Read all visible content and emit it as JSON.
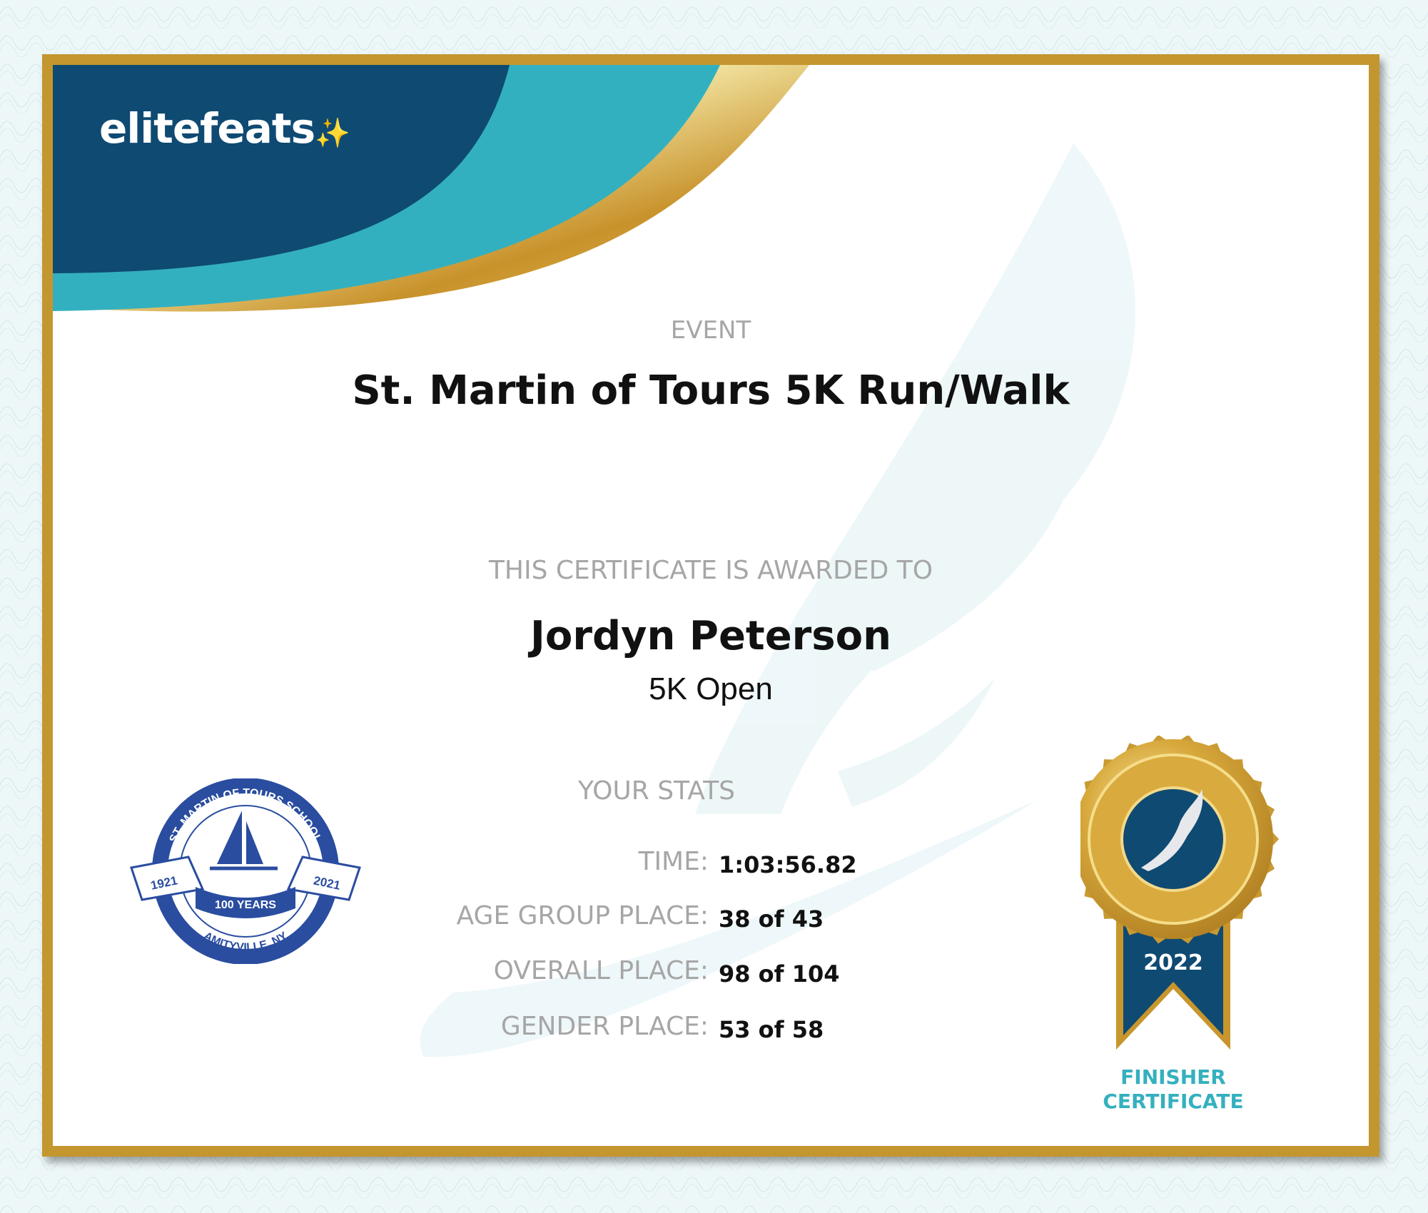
{
  "brand": {
    "logo_text": "elitefeats",
    "colors": {
      "navy": "#0f4a72",
      "teal": "#33b0bf",
      "gold": "#c3962f"
    }
  },
  "event": {
    "label": "EVENT",
    "title": "St. Martin of Tours 5K Run/Walk"
  },
  "award": {
    "label": "THIS CERTIFICATE IS AWARDED TO",
    "name": "Jordyn Peterson",
    "division": "5K Open"
  },
  "stats": {
    "title": "YOUR STATS",
    "rows": [
      {
        "label": "TIME:",
        "value": "1:03:56.82"
      },
      {
        "label": "AGE GROUP PLACE:",
        "value": "38 of 43"
      },
      {
        "label": "OVERALL PLACE:",
        "value": "98 of 104"
      },
      {
        "label": "GENDER PLACE:",
        "value": "53 of 58"
      }
    ]
  },
  "school_seal": {
    "name": "ST. MARTIN OF TOURS SCHOOL",
    "years": [
      "1921",
      "2021"
    ],
    "banner": "100 YEARS",
    "location": "AMITYVILLE, NY"
  },
  "badge": {
    "year": "2022",
    "line1": "FINISHER",
    "line2": "CERTIFICATE",
    "icon": "winged-foot-icon"
  }
}
